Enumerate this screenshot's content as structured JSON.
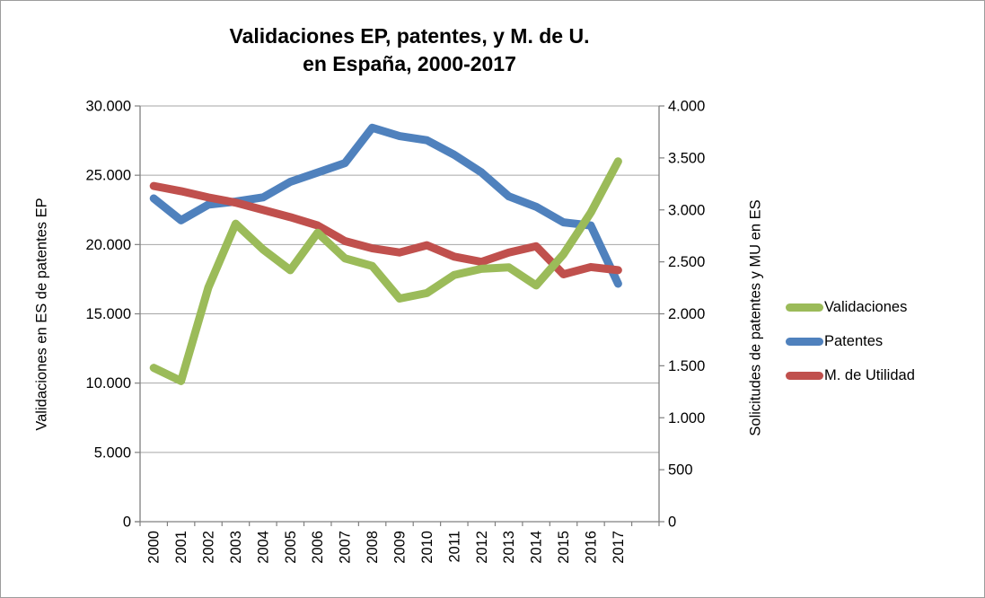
{
  "title": {
    "line1": "Validaciones EP, patentes, y M. de U.",
    "line2": "en España, 2000-2017"
  },
  "chart_data": {
    "type": "line",
    "categories": [
      "2000",
      "2001",
      "2002",
      "2003",
      "2004",
      "2005",
      "2006",
      "2007",
      "2008",
      "2009",
      "2010",
      "2011",
      "2012",
      "2013",
      "2014",
      "2015",
      "2016",
      "2017"
    ],
    "x_trailing_blank_slots": 1,
    "series": [
      {
        "name": "Validaciones",
        "axis": "left",
        "color": "#9BBB59",
        "values": [
          11100,
          10150,
          16900,
          21500,
          19650,
          18150,
          20850,
          19000,
          18450,
          16100,
          16500,
          17800,
          18250,
          18350,
          17050,
          19300,
          22300,
          26000
        ]
      },
      {
        "name": "Patentes",
        "axis": "right",
        "color": "#4F81BD",
        "values": [
          3110,
          2900,
          3050,
          3080,
          3120,
          3270,
          3360,
          3450,
          3790,
          3710,
          3670,
          3530,
          3360,
          3130,
          3030,
          2880,
          2850,
          2290
        ]
      },
      {
        "name": "M. de Utilidad",
        "axis": "right",
        "color": "#C0504D",
        "values": [
          3230,
          3180,
          3120,
          3070,
          3000,
          2930,
          2850,
          2700,
          2630,
          2590,
          2660,
          2550,
          2500,
          2590,
          2650,
          2380,
          2450,
          2420
        ]
      }
    ],
    "left_axis": {
      "title": "Validaciones en ES de patentes EP",
      "min": 0,
      "max": 30000,
      "tick_labels": [
        "0",
        "5.000",
        "10.000",
        "15.000",
        "20.000",
        "25.000",
        "30.000"
      ]
    },
    "right_axis": {
      "title": "Solicitudes de patentes y MU en ES",
      "min": 0,
      "max": 4000,
      "tick_labels": [
        "0",
        "500",
        "1.000",
        "1.500",
        "2.000",
        "2.500",
        "3.000",
        "3.500",
        "4.000"
      ]
    },
    "grid": "horizontal",
    "legend_position": "right",
    "grid_color": "#A6A6A6",
    "axis_color": "#808080"
  }
}
